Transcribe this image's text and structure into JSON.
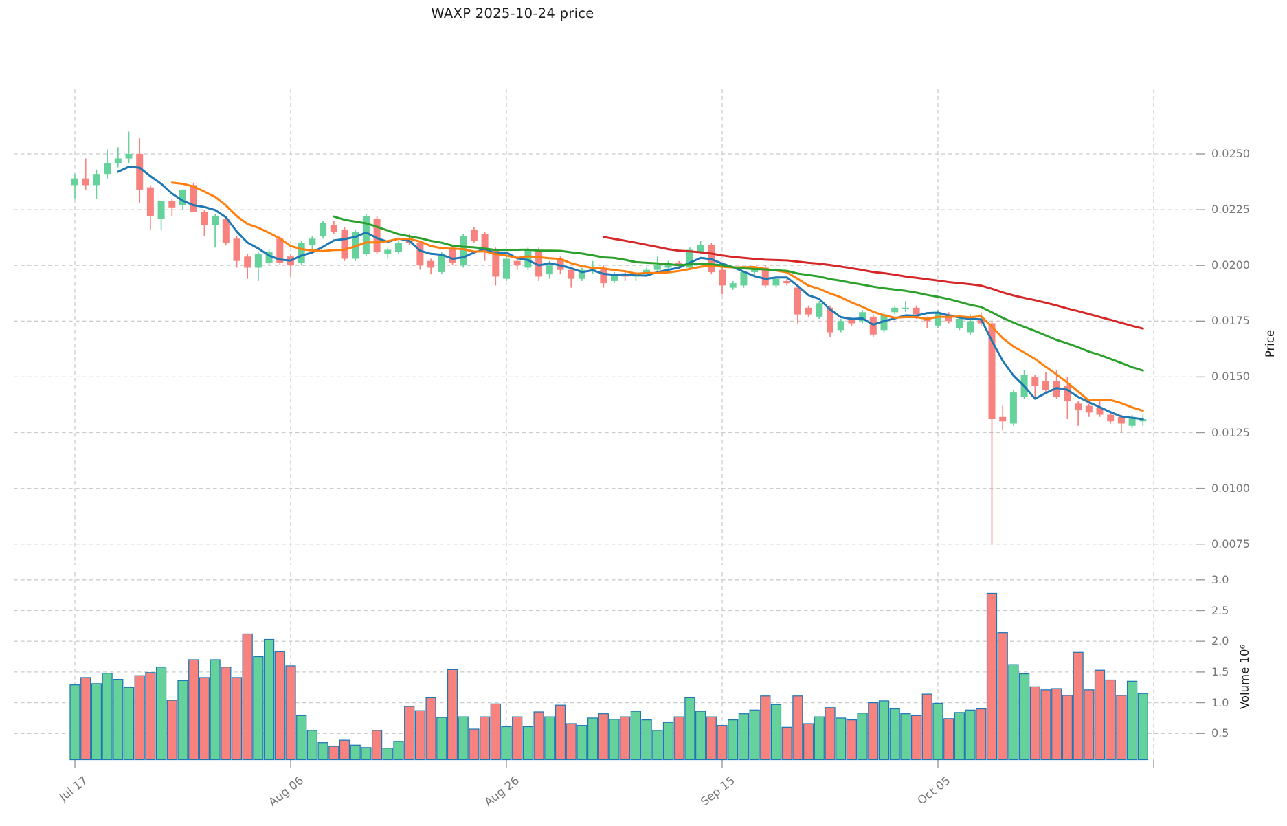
{
  "title": "WAXP  2025-10-24  price",
  "chart_data": {
    "type": "candlestick",
    "title": "WAXP  2025-10-24  price",
    "subtitle": "",
    "legend": "none",
    "grid": "dashed",
    "x_axis": {
      "tick_labels": [
        "Jul 17",
        "Aug 06",
        "Aug 26",
        "Sep 15",
        "Oct 05"
      ],
      "tick_indices": [
        0,
        20,
        40,
        60,
        80
      ],
      "unlabeled_gridline_indices": [
        100
      ]
    },
    "price_axis": {
      "label": "Price",
      "side": "right",
      "tick_labels": [
        "0.0250",
        "0.0225",
        "0.0200",
        "0.0175",
        "0.0150",
        "0.0125",
        "0.0100",
        "0.0075"
      ],
      "tick_values": [
        0.025,
        0.0225,
        0.02,
        0.0175,
        0.015,
        0.0125,
        0.01,
        0.0075
      ]
    },
    "volume_axis": {
      "label": "Volume  10⁶",
      "side": "right",
      "unit_multiplier": "10⁶",
      "tick_labels": [
        "3.0",
        "2.5",
        "2.0",
        "1.5",
        "1.0",
        "0.5"
      ],
      "tick_values": [
        3.0,
        2.5,
        2.0,
        1.5,
        1.0,
        0.5
      ]
    },
    "moving_averages": [
      {
        "name": "ma-short",
        "window": 5,
        "color": "#1f77b4"
      },
      {
        "name": "ma-mid",
        "window": 10,
        "color": "#ff7f0e"
      },
      {
        "name": "ma-long",
        "window": 25,
        "color": "#2ca02c"
      },
      {
        "name": "ma-longest",
        "window": 50,
        "color": "#d62728"
      }
    ],
    "colors": {
      "up": "#66d29b",
      "down": "#f8827e",
      "volume_bar_edge": "#1f77b4",
      "grid": "#cccccc",
      "tick_text": "#767676",
      "title_text": "#1c1c1c"
    },
    "candles": {
      "columns": [
        "open",
        "high",
        "low",
        "close",
        "volume_millions"
      ],
      "rows": [
        [
          0.0236,
          0.0241,
          0.023,
          0.0239,
          1.29
        ],
        [
          0.0239,
          0.0248,
          0.0234,
          0.0236,
          1.41
        ],
        [
          0.0236,
          0.0243,
          0.023,
          0.0241,
          1.31
        ],
        [
          0.0241,
          0.0252,
          0.0239,
          0.0246,
          1.48
        ],
        [
          0.0246,
          0.0253,
          0.0244,
          0.0248,
          1.38
        ],
        [
          0.0248,
          0.026,
          0.0246,
          0.025,
          1.25
        ],
        [
          0.025,
          0.0257,
          0.0228,
          0.0234,
          1.44
        ],
        [
          0.0235,
          0.0236,
          0.0216,
          0.0222,
          1.49
        ],
        [
          0.0221,
          0.0229,
          0.0216,
          0.0229,
          1.58
        ],
        [
          0.0229,
          0.023,
          0.0222,
          0.0226,
          1.04
        ],
        [
          0.0227,
          0.0234,
          0.0225,
          0.0234,
          1.36
        ],
        [
          0.0236,
          0.0237,
          0.0224,
          0.0224,
          1.7
        ],
        [
          0.0224,
          0.0225,
          0.0213,
          0.0218,
          1.41
        ],
        [
          0.0218,
          0.0223,
          0.0208,
          0.0222,
          1.7
        ],
        [
          0.0221,
          0.0222,
          0.0209,
          0.021,
          1.58
        ],
        [
          0.0212,
          0.0213,
          0.0199,
          0.0202,
          1.41
        ],
        [
          0.0204,
          0.0205,
          0.0194,
          0.0199,
          2.12
        ],
        [
          0.0199,
          0.0206,
          0.0193,
          0.0205,
          1.75
        ],
        [
          0.0201,
          0.0207,
          0.02,
          0.0206,
          2.03
        ],
        [
          0.0212,
          0.0213,
          0.02,
          0.0201,
          1.83
        ],
        [
          0.0204,
          0.0205,
          0.0195,
          0.02,
          1.6
        ],
        [
          0.0201,
          0.0211,
          0.02,
          0.021,
          0.79
        ],
        [
          0.0209,
          0.0213,
          0.0207,
          0.0212,
          0.55
        ],
        [
          0.0213,
          0.022,
          0.0212,
          0.0219,
          0.35
        ],
        [
          0.0218,
          0.022,
          0.0214,
          0.0215,
          0.29
        ],
        [
          0.0216,
          0.0217,
          0.0202,
          0.0203,
          0.39
        ],
        [
          0.0203,
          0.0216,
          0.0202,
          0.0215,
          0.31
        ],
        [
          0.0205,
          0.0223,
          0.0204,
          0.0222,
          0.27
        ],
        [
          0.0221,
          0.0222,
          0.0205,
          0.0206,
          0.55
        ],
        [
          0.0205,
          0.0208,
          0.0203,
          0.0207,
          0.26
        ],
        [
          0.0206,
          0.0211,
          0.0205,
          0.021,
          0.37
        ],
        [
          0.0211,
          0.0214,
          0.0209,
          0.021,
          0.94
        ],
        [
          0.021,
          0.0211,
          0.0198,
          0.02,
          0.87
        ],
        [
          0.0202,
          0.0203,
          0.0196,
          0.0199,
          1.08
        ],
        [
          0.0197,
          0.0206,
          0.0196,
          0.0205,
          0.76
        ],
        [
          0.0208,
          0.0209,
          0.02,
          0.0201,
          1.54
        ],
        [
          0.02,
          0.0214,
          0.0199,
          0.0213,
          0.77
        ],
        [
          0.0216,
          0.0217,
          0.021,
          0.0211,
          0.57
        ],
        [
          0.0214,
          0.0215,
          0.0202,
          0.0207,
          0.77
        ],
        [
          0.0207,
          0.0208,
          0.0191,
          0.0195,
          0.98
        ],
        [
          0.0194,
          0.0204,
          0.0193,
          0.0203,
          0.61
        ],
        [
          0.0202,
          0.0204,
          0.0198,
          0.02,
          0.77
        ],
        [
          0.0199,
          0.0208,
          0.0198,
          0.0207,
          0.61
        ],
        [
          0.0207,
          0.0208,
          0.0193,
          0.0195,
          0.85
        ],
        [
          0.0196,
          0.0202,
          0.0194,
          0.02,
          0.77
        ],
        [
          0.0203,
          0.0204,
          0.0196,
          0.0198,
          0.96
        ],
        [
          0.0198,
          0.0199,
          0.019,
          0.0194,
          0.66
        ],
        [
          0.0194,
          0.0199,
          0.0193,
          0.0198,
          0.63
        ],
        [
          0.0198,
          0.0202,
          0.0196,
          0.0199,
          0.75
        ],
        [
          0.0199,
          0.02,
          0.019,
          0.0192,
          0.82
        ],
        [
          0.0193,
          0.0197,
          0.0192,
          0.0196,
          0.73
        ],
        [
          0.0196,
          0.0197,
          0.0193,
          0.0195,
          0.77
        ],
        [
          0.0195,
          0.0197,
          0.0193,
          0.0196,
          0.86
        ],
        [
          0.0196,
          0.0199,
          0.0195,
          0.0198,
          0.72
        ],
        [
          0.0198,
          0.0204,
          0.0197,
          0.02,
          0.55
        ],
        [
          0.0199,
          0.0202,
          0.0198,
          0.0201,
          0.68
        ],
        [
          0.0201,
          0.0202,
          0.0199,
          0.02,
          0.77
        ],
        [
          0.0199,
          0.0208,
          0.0198,
          0.0207,
          1.08
        ],
        [
          0.0206,
          0.0211,
          0.0205,
          0.0209,
          0.86
        ],
        [
          0.0209,
          0.021,
          0.0196,
          0.0197,
          0.77
        ],
        [
          0.0198,
          0.0199,
          0.0187,
          0.0191,
          0.63
        ],
        [
          0.019,
          0.0193,
          0.0189,
          0.0192,
          0.72
        ],
        [
          0.0191,
          0.0197,
          0.019,
          0.0197,
          0.82
        ],
        [
          0.0197,
          0.0199,
          0.0195,
          0.0199,
          0.88
        ],
        [
          0.0199,
          0.02,
          0.019,
          0.0191,
          1.11
        ],
        [
          0.0191,
          0.0195,
          0.019,
          0.0194,
          0.97
        ],
        [
          0.0193,
          0.0194,
          0.0191,
          0.0192,
          0.6
        ],
        [
          0.019,
          0.0191,
          0.0174,
          0.0178,
          1.11
        ],
        [
          0.0181,
          0.0182,
          0.0177,
          0.0178,
          0.66
        ],
        [
          0.0177,
          0.0184,
          0.0176,
          0.0183,
          0.77
        ],
        [
          0.0181,
          0.0182,
          0.0168,
          0.017,
          0.92
        ],
        [
          0.0171,
          0.0176,
          0.017,
          0.0175,
          0.75
        ],
        [
          0.0176,
          0.0177,
          0.0173,
          0.0174,
          0.72
        ],
        [
          0.0175,
          0.018,
          0.0174,
          0.0179,
          0.83
        ],
        [
          0.0177,
          0.0178,
          0.0168,
          0.0169,
          1.0
        ],
        [
          0.0171,
          0.0179,
          0.017,
          0.0178,
          1.03
        ],
        [
          0.0179,
          0.0182,
          0.0178,
          0.0181,
          0.9
        ],
        [
          0.0181,
          0.0184,
          0.0179,
          0.0181,
          0.82
        ],
        [
          0.0181,
          0.0182,
          0.0176,
          0.0178,
          0.79
        ],
        [
          0.0176,
          0.0177,
          0.0172,
          0.0175,
          1.14
        ],
        [
          0.0173,
          0.018,
          0.0172,
          0.0179,
          0.99
        ],
        [
          0.0178,
          0.0179,
          0.0174,
          0.0175,
          0.74
        ],
        [
          0.0172,
          0.0177,
          0.0171,
          0.0176,
          0.84
        ],
        [
          0.017,
          0.0178,
          0.0169,
          0.0175,
          0.88
        ],
        [
          0.0176,
          0.0179,
          0.0173,
          0.0174,
          0.9
        ],
        [
          0.0174,
          0.0175,
          0.0075,
          0.0131,
          2.78
        ],
        [
          0.0132,
          0.0137,
          0.0126,
          0.013,
          2.14
        ],
        [
          0.0129,
          0.0144,
          0.0128,
          0.0143,
          1.62
        ],
        [
          0.0141,
          0.0153,
          0.014,
          0.0151,
          1.47
        ],
        [
          0.015,
          0.0151,
          0.014,
          0.0146,
          1.26
        ],
        [
          0.0148,
          0.0152,
          0.0143,
          0.0144,
          1.21
        ],
        [
          0.0148,
          0.0153,
          0.014,
          0.0141,
          1.23
        ],
        [
          0.0146,
          0.015,
          0.0131,
          0.0139,
          1.12
        ],
        [
          0.0138,
          0.0139,
          0.0128,
          0.0135,
          1.82
        ],
        [
          0.0137,
          0.0138,
          0.0132,
          0.0134,
          1.21
        ],
        [
          0.0136,
          0.014,
          0.0132,
          0.0133,
          1.53
        ],
        [
          0.0133,
          0.0134,
          0.0129,
          0.013,
          1.37
        ],
        [
          0.0132,
          0.0133,
          0.0125,
          0.0129,
          1.12
        ],
        [
          0.0128,
          0.0133,
          0.0127,
          0.0132,
          1.35
        ],
        [
          0.013,
          0.0133,
          0.0128,
          0.0131,
          1.15
        ]
      ]
    }
  }
}
